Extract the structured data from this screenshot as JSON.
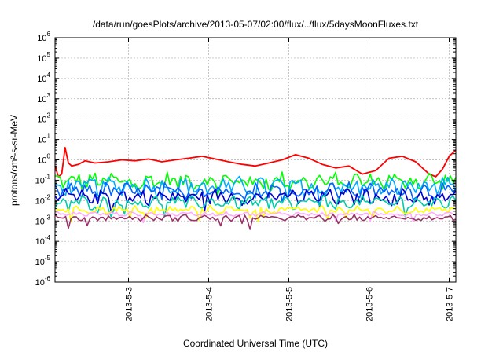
{
  "chart_data": {
    "type": "line",
    "title": "/data/run/goesPlots/archive/2013-05-07/02:00/flux/../flux/5daysMoonFluxes.txt",
    "xlabel": "Coordinated Universal Time (UTC)",
    "ylabel": "protons/cm²-s-sr-MeV",
    "y_scale": "log",
    "ylim": [
      1e-06,
      1000000.0
    ],
    "xlim": [
      "2013-05-02T02:00",
      "2013-05-07T02:00"
    ],
    "x_ticks": [
      "2013-5-3",
      "2013-5-4",
      "2013-5-5",
      "2013-5-6",
      "2013-5-7"
    ],
    "y_ticks": [
      {
        "base": "10",
        "exp": "-6"
      },
      {
        "base": "10",
        "exp": "-5"
      },
      {
        "base": "10",
        "exp": "-4"
      },
      {
        "base": "10",
        "exp": "-3"
      },
      {
        "base": "10",
        "exp": "-2"
      },
      {
        "base": "10",
        "exp": "-1"
      },
      {
        "base": "10",
        "exp": "0"
      },
      {
        "base": "10",
        "exp": "1"
      },
      {
        "base": "10",
        "exp": "2"
      },
      {
        "base": "10",
        "exp": "3"
      },
      {
        "base": "10",
        "exp": "4"
      },
      {
        "base": "10",
        "exp": "5"
      },
      {
        "base": "10",
        "exp": "6"
      }
    ],
    "grid": true,
    "series": [
      {
        "color": "#ff0000",
        "x": [
          "2013-05-02T02:00",
          "2013-05-02T03:00",
          "2013-05-02T04:00",
          "2013-05-02T05:00",
          "2013-05-02T06:00",
          "2013-05-02T07:00",
          "2013-05-02T09:00",
          "2013-05-02T11:00",
          "2013-05-02T14:00",
          "2013-05-02T18:00",
          "2013-05-02T22:00",
          "2013-05-03T02:00",
          "2013-05-03T06:00",
          "2013-05-03T10:00",
          "2013-05-03T14:00",
          "2013-05-03T18:00",
          "2013-05-03T22:00",
          "2013-05-04T02:00",
          "2013-05-04T06:00",
          "2013-05-04T10:00",
          "2013-05-04T14:00",
          "2013-05-04T18:00",
          "2013-05-04T22:00",
          "2013-05-05T02:00",
          "2013-05-05T06:00",
          "2013-05-05T10:00",
          "2013-05-05T14:00",
          "2013-05-05T18:00",
          "2013-05-05T22:00",
          "2013-05-06T02:00",
          "2013-05-06T06:00",
          "2013-05-06T10:00",
          "2013-05-06T14:00",
          "2013-05-06T18:00",
          "2013-05-06T20:00",
          "2013-05-06T22:00",
          "2013-05-07T00:00",
          "2013-05-07T02:00"
        ],
        "y": [
          0.5,
          0.15,
          0.2,
          4.0,
          0.7,
          0.5,
          0.6,
          0.9,
          0.7,
          0.8,
          1.0,
          0.9,
          1.1,
          0.8,
          1.0,
          1.2,
          1.5,
          1.1,
          0.8,
          0.6,
          0.5,
          0.7,
          1.0,
          1.8,
          1.2,
          0.6,
          0.4,
          0.5,
          0.2,
          0.3,
          1.2,
          1.5,
          0.8,
          0.2,
          0.15,
          0.35,
          1.5,
          3.0
        ]
      },
      {
        "color": "#00ff00",
        "level": 0.09,
        "spread": 0.35
      },
      {
        "color": "#00aaff",
        "level": 0.05,
        "spread": 0.35
      },
      {
        "color": "#0066ff",
        "level": 0.03,
        "spread": 0.3
      },
      {
        "color": "#0000cc",
        "level": 0.015,
        "spread": 0.3
      },
      {
        "color": "#00ccaa",
        "level": 0.008,
        "spread": 0.25
      },
      {
        "color": "#ffff00",
        "level": 0.0035,
        "spread": 0.15
      },
      {
        "color": "#ffaaff",
        "level": 0.0022,
        "spread": 0.08
      },
      {
        "color": "#993366",
        "level": 0.0014,
        "spread": 0.12
      }
    ]
  }
}
